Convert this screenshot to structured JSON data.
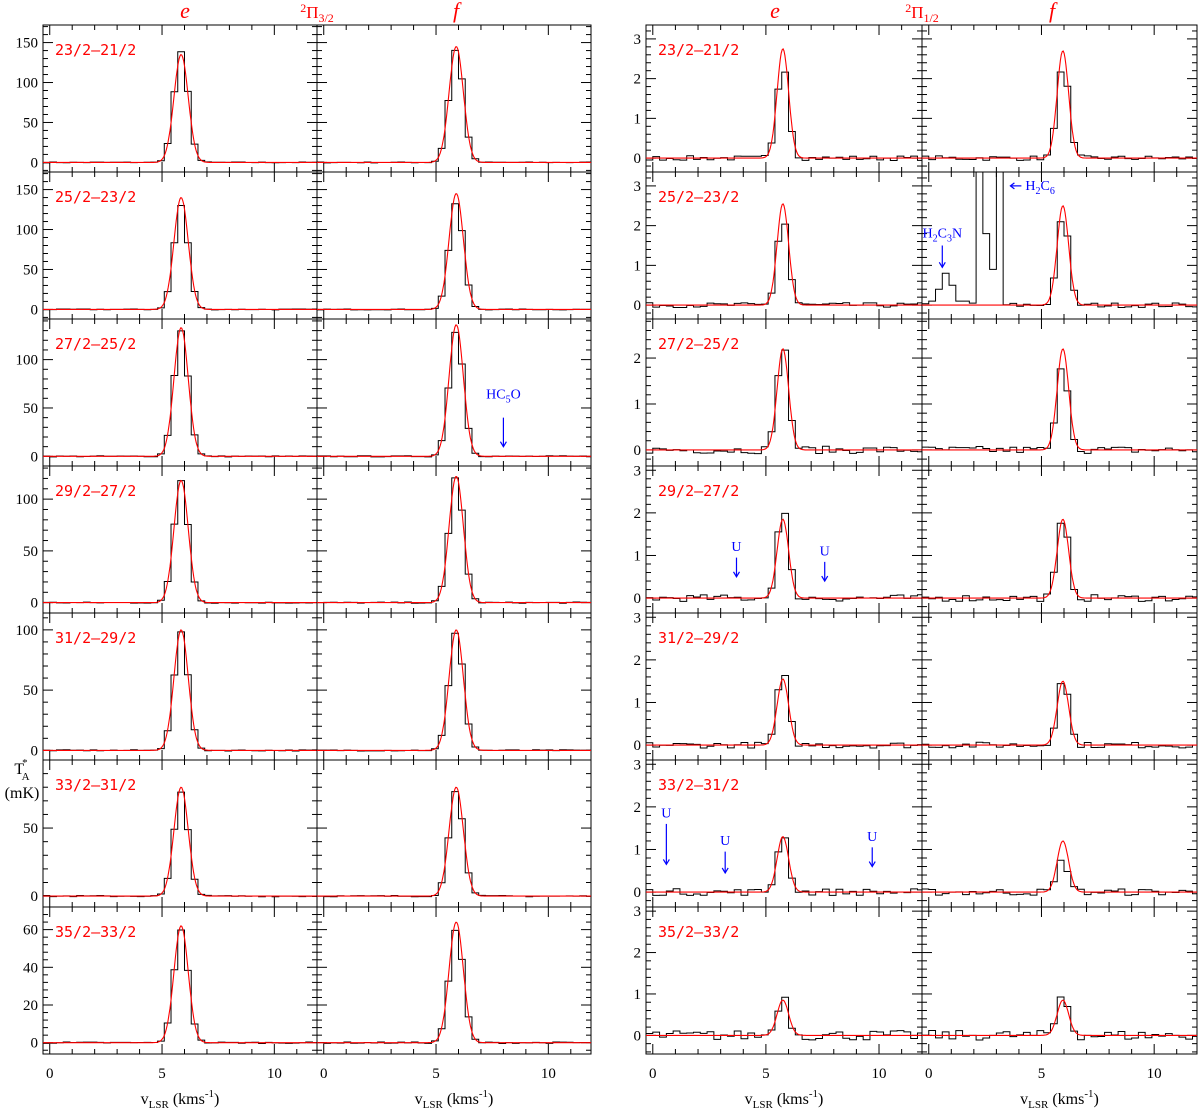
{
  "chart_data": {
    "type": "line",
    "xlabel": "v_LSR (kms^-1)",
    "ylabel": "T_A^* (mK)",
    "xlim": [
      -0.3,
      11.9
    ],
    "xticks": [
      0,
      5,
      10
    ],
    "column_headers": [
      "e",
      "f",
      "e",
      "f"
    ],
    "group_headers": [
      {
        "text": "2Π3/2",
        "sup": "2",
        "base": "Π",
        "sub": "3/2"
      },
      {
        "text": "2Π1/2",
        "sup": "2",
        "base": "Π",
        "sub": "1/2"
      }
    ],
    "colors": {
      "spectrum": "#000000",
      "fit": "#ff0000",
      "label": "#ff0000",
      "annotation": "#0000ff"
    },
    "rows": [
      {
        "transition": "23/2–21/2",
        "left": {
          "ylim": [
            -12,
            172
          ],
          "yticks": [
            0,
            50,
            100,
            150
          ]
        },
        "right": {
          "ylim": [
            -0.35,
            3.35
          ],
          "yticks": [
            0,
            1,
            2,
            3
          ]
        },
        "panels": [
          {
            "peak": 138,
            "fit": 135,
            "center": 5.85,
            "fwhm": 0.75,
            "noise": 0.6
          },
          {
            "peak": 142,
            "fit": 145,
            "center": 5.9,
            "fwhm": 0.75,
            "noise": 0.6
          },
          {
            "peak": 2.4,
            "fit": 2.75,
            "center": 5.75,
            "fwhm": 0.6,
            "noise": 0.06
          },
          {
            "peak": 2.4,
            "fit": 2.7,
            "center": 5.95,
            "fwhm": 0.6,
            "noise": 0.06
          }
        ]
      },
      {
        "transition": "25/2–23/2",
        "left": {
          "ylim": [
            -12,
            172
          ],
          "yticks": [
            0,
            50,
            100,
            150
          ]
        },
        "right": {
          "ylim": [
            -0.35,
            3.35
          ],
          "yticks": [
            0,
            1,
            2,
            3
          ]
        },
        "panels": [
          {
            "peak": 130,
            "fit": 140,
            "center": 5.85,
            "fwhm": 0.75,
            "noise": 0.6
          },
          {
            "peak": 134,
            "fit": 145,
            "center": 5.9,
            "fwhm": 0.75,
            "noise": 0.6
          },
          {
            "peak": 2.2,
            "fit": 2.55,
            "center": 5.75,
            "fwhm": 0.6,
            "noise": 0.06
          },
          {
            "peak": 2.3,
            "fit": 2.5,
            "center": 5.95,
            "fwhm": 0.6,
            "noise": 0.06
          }
        ]
      },
      {
        "transition": "27/2–25/2",
        "left": {
          "ylim": [
            -10,
            142
          ],
          "yticks": [
            0,
            50,
            100
          ]
        },
        "right": {
          "ylim": [
            -0.35,
            2.85
          ],
          "yticks": [
            0,
            1,
            2
          ]
        },
        "panels": [
          {
            "peak": 130,
            "fit": 133,
            "center": 5.85,
            "fwhm": 0.75,
            "noise": 0.6
          },
          {
            "peak": 130,
            "fit": 136,
            "center": 5.9,
            "fwhm": 0.75,
            "noise": 0.6
          },
          {
            "peak": 2.3,
            "fit": 2.2,
            "center": 5.75,
            "fwhm": 0.6,
            "noise": 0.08
          },
          {
            "peak": 1.85,
            "fit": 2.2,
            "center": 5.95,
            "fwhm": 0.6,
            "noise": 0.08
          }
        ]
      },
      {
        "transition": "29/2–27/2",
        "left": {
          "ylim": [
            -10,
            132
          ],
          "yticks": [
            0,
            50,
            100
          ]
        },
        "right": {
          "ylim": [
            -0.35,
            3.1
          ],
          "yticks": [
            0,
            1,
            2,
            3
          ]
        },
        "panels": [
          {
            "peak": 118,
            "fit": 118,
            "center": 5.85,
            "fwhm": 0.75,
            "noise": 0.6
          },
          {
            "peak": 122,
            "fit": 122,
            "center": 5.9,
            "fwhm": 0.75,
            "noise": 0.6
          },
          {
            "peak": 2.1,
            "fit": 1.85,
            "center": 5.75,
            "fwhm": 0.6,
            "noise": 0.08
          },
          {
            "peak": 1.85,
            "fit": 1.85,
            "center": 5.95,
            "fwhm": 0.6,
            "noise": 0.08
          }
        ]
      },
      {
        "transition": "31/2–29/2",
        "left": {
          "ylim": [
            -8,
            114
          ],
          "yticks": [
            0,
            50,
            100
          ]
        },
        "right": {
          "ylim": [
            -0.35,
            3.1
          ],
          "yticks": [
            0,
            1,
            2,
            3
          ]
        },
        "panels": [
          {
            "peak": 98,
            "fit": 100,
            "center": 5.85,
            "fwhm": 0.75,
            "noise": 0.5
          },
          {
            "peak": 98,
            "fit": 100,
            "center": 5.9,
            "fwhm": 0.75,
            "noise": 0.5
          },
          {
            "peak": 1.7,
            "fit": 1.55,
            "center": 5.75,
            "fwhm": 0.6,
            "noise": 0.07
          },
          {
            "peak": 1.6,
            "fit": 1.5,
            "center": 5.95,
            "fwhm": 0.6,
            "noise": 0.07
          }
        ]
      },
      {
        "transition": "33/2–31/2",
        "left": {
          "ylim": [
            -8,
            100
          ],
          "yticks": [
            0,
            50
          ]
        },
        "right": {
          "ylim": [
            -0.35,
            3.1
          ],
          "yticks": [
            0,
            1,
            2,
            3
          ]
        },
        "panels": [
          {
            "peak": 76,
            "fit": 80,
            "center": 5.85,
            "fwhm": 0.75,
            "noise": 0.5
          },
          {
            "peak": 78,
            "fit": 80,
            "center": 5.9,
            "fwhm": 0.75,
            "noise": 0.5
          },
          {
            "peak": 1.35,
            "fit": 1.3,
            "center": 5.75,
            "fwhm": 0.6,
            "noise": 0.08
          },
          {
            "peak": 0.75,
            "fit": 1.2,
            "center": 5.95,
            "fwhm": 0.6,
            "noise": 0.08
          }
        ]
      },
      {
        "transition": "35/2–33/2",
        "left": {
          "ylim": [
            -6,
            72
          ],
          "yticks": [
            0,
            20,
            40,
            60
          ]
        },
        "right": {
          "ylim": [
            -0.45,
            3.1
          ],
          "yticks": [
            0,
            1,
            2,
            3
          ]
        },
        "panels": [
          {
            "peak": 60,
            "fit": 62,
            "center": 5.85,
            "fwhm": 0.75,
            "noise": 0.4
          },
          {
            "peak": 60,
            "fit": 64,
            "center": 5.9,
            "fwhm": 0.75,
            "noise": 0.4
          },
          {
            "peak": 0.95,
            "fit": 0.85,
            "center": 5.75,
            "fwhm": 0.6,
            "noise": 0.12
          },
          {
            "peak": 1.0,
            "fit": 0.85,
            "center": 5.95,
            "fwhm": 0.6,
            "noise": 0.12
          }
        ]
      }
    ],
    "annotations": [
      {
        "row": 2,
        "col": 1,
        "text": "HC5O",
        "parts": [
          [
            "HC",
            false
          ],
          [
            "5",
            true
          ],
          [
            "O",
            false
          ]
        ],
        "x": 8.0,
        "arrow_from": 40,
        "arrow_to": 10,
        "text_y": 60
      },
      {
        "row": 1,
        "col": 3,
        "text": "H2C3N",
        "parts": [
          [
            "H",
            false
          ],
          [
            "2",
            true
          ],
          [
            "C",
            false
          ],
          [
            "3",
            true
          ],
          [
            "N",
            false
          ]
        ],
        "x": 0.6,
        "arrow_from": 1.5,
        "arrow_to": 0.95,
        "text_y": 1.7
      },
      {
        "row": 1,
        "col": 3,
        "text": "H2C6",
        "parts": [
          [
            "H",
            false
          ],
          [
            "2",
            true
          ],
          [
            "C",
            false
          ],
          [
            "6",
            true
          ]
        ],
        "x": 3.4,
        "arrow_from": 3.8,
        "arrow_to": 3.25,
        "text_y": 2.9,
        "horizontal": true
      },
      {
        "row": 3,
        "col": 2,
        "text": "U",
        "parts": [
          [
            "U",
            false
          ]
        ],
        "x": 3.7,
        "arrow_from": 0.95,
        "arrow_to": 0.5,
        "text_y": 1.1
      },
      {
        "row": 3,
        "col": 2,
        "text": "U",
        "parts": [
          [
            "U",
            false
          ]
        ],
        "x": 7.6,
        "arrow_from": 0.85,
        "arrow_to": 0.4,
        "text_y": 1.0
      },
      {
        "row": 5,
        "col": 2,
        "text": "U",
        "parts": [
          [
            "U",
            false
          ]
        ],
        "x": 0.6,
        "arrow_from": 1.6,
        "arrow_to": 0.65,
        "text_y": 1.75
      },
      {
        "row": 5,
        "col": 2,
        "text": "U",
        "parts": [
          [
            "U",
            false
          ]
        ],
        "x": 3.2,
        "arrow_from": 0.95,
        "arrow_to": 0.45,
        "text_y": 1.1
      },
      {
        "row": 5,
        "col": 2,
        "text": "U",
        "parts": [
          [
            "U",
            false
          ]
        ],
        "x": 9.7,
        "arrow_from": 1.05,
        "arrow_to": 0.6,
        "text_y": 1.2
      }
    ],
    "contaminants": [
      {
        "row": 1,
        "col": 3,
        "x0": 0.0,
        "x1": 3.4,
        "steps": [
          [
            0.0,
            0.1
          ],
          [
            0.3,
            0.4
          ],
          [
            0.6,
            0.8
          ],
          [
            0.9,
            0.5
          ],
          [
            1.2,
            0.1
          ],
          [
            1.8,
            0.05
          ],
          [
            2.1,
            3.6
          ],
          [
            2.4,
            1.8
          ],
          [
            2.7,
            0.9
          ],
          [
            3.0,
            3.6
          ],
          [
            3.3,
            0.0
          ]
        ]
      }
    ]
  }
}
